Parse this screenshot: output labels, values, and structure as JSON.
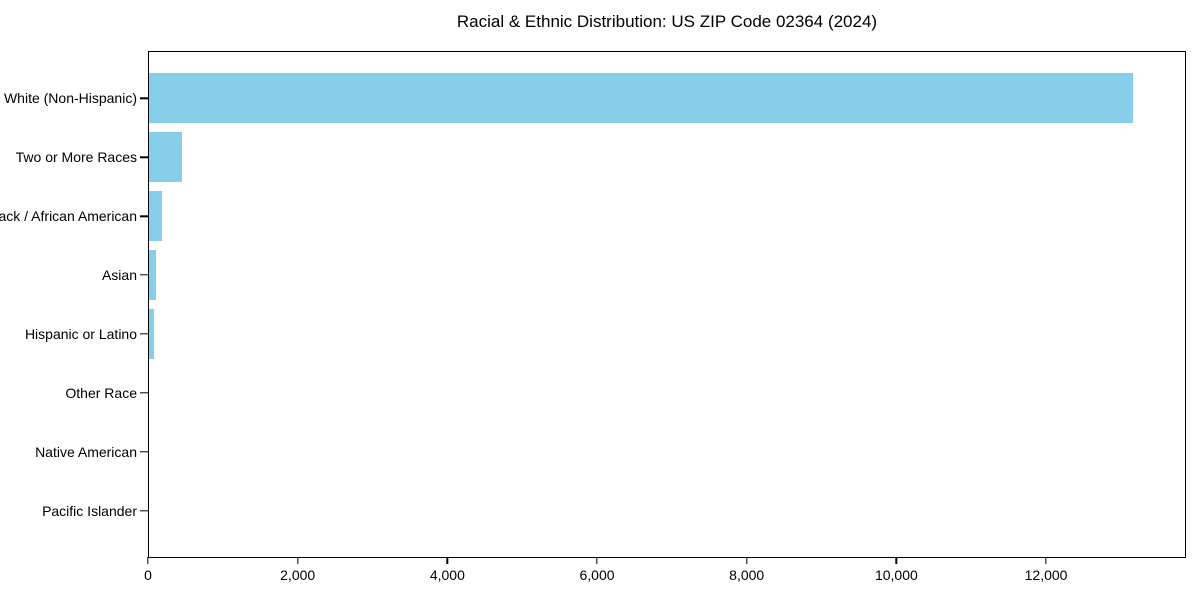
{
  "title": "Racial & Ethnic Distribution: US ZIP Code 02364 (2024)",
  "chart_data": {
    "type": "bar",
    "orientation": "horizontal",
    "title": "Racial & Ethnic Distribution: US ZIP Code 02364 (2024)",
    "xlabel": "",
    "ylabel": "",
    "categories": [
      "White (Non-Hispanic)",
      "Two or More Races",
      "Black / African American",
      "Asian",
      "Hispanic or Latino",
      "Other Race",
      "Native American",
      "Pacific Islander"
    ],
    "values": [
      13180,
      440,
      180,
      100,
      65,
      0,
      0,
      0
    ],
    "xlim": [
      0,
      13870
    ],
    "xticks": [
      0,
      2000,
      4000,
      6000,
      8000,
      10000,
      12000
    ],
    "xtick_labels": [
      "0",
      "2,000",
      "4,000",
      "6,000",
      "8,000",
      "10,000",
      "12,000"
    ],
    "bar_color": "#87CEEB",
    "grid": false,
    "legend": "none"
  }
}
